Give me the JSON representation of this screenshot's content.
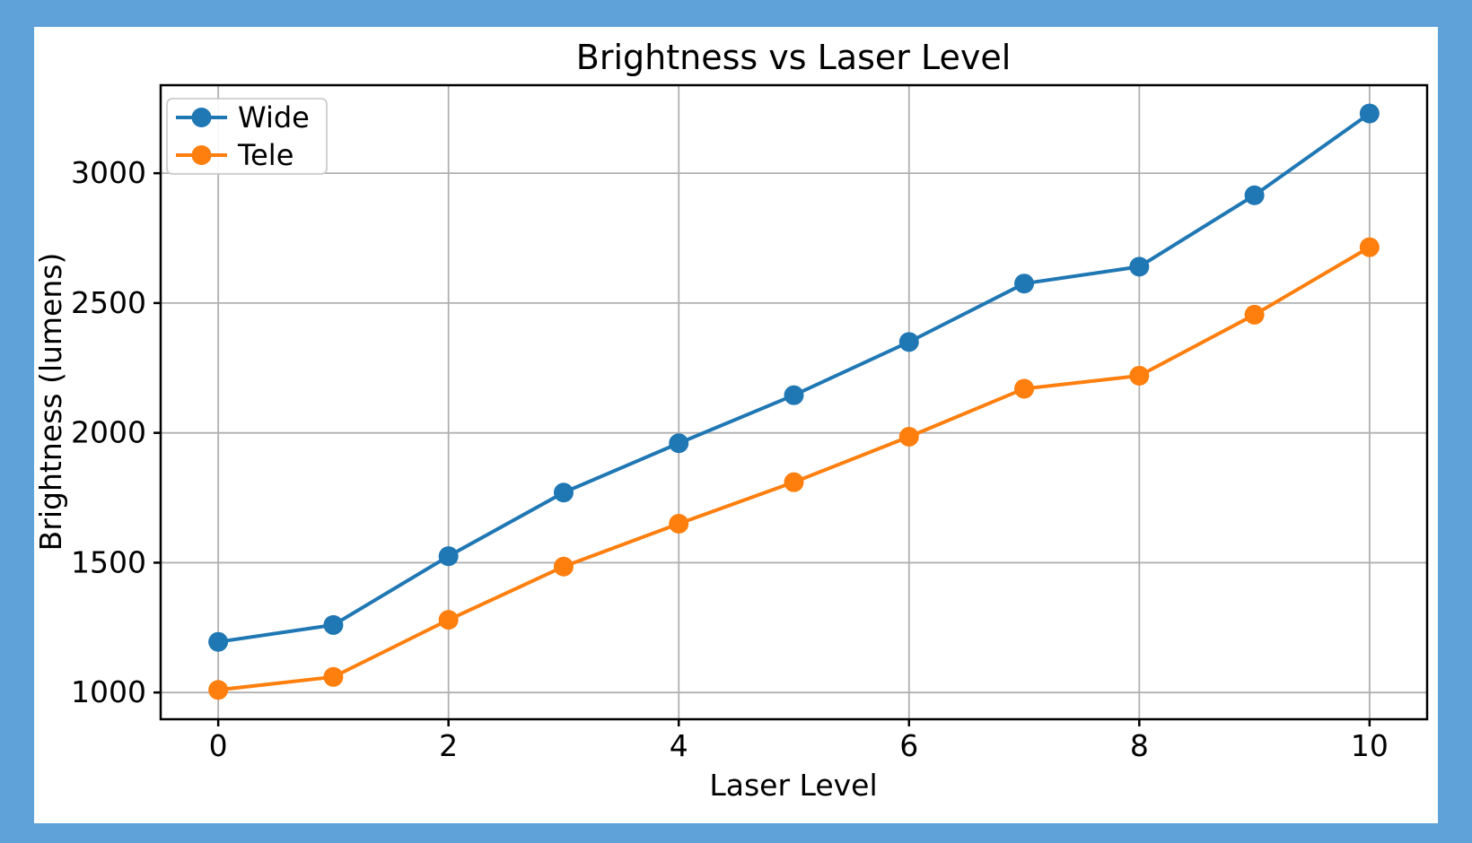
{
  "style": {
    "page_background": "#5fa2d9",
    "figure_background": "#ffffff",
    "grid_color": "#b0b0b0",
    "spine_color": "#000000",
    "legend_border_color": "#cccccc",
    "text_color": "#000000"
  },
  "chart_data": {
    "type": "line",
    "title": "Brightness vs Laser Level",
    "xlabel": "Laser Level",
    "ylabel": "Brightness (lumens)",
    "x": [
      0,
      1,
      2,
      3,
      4,
      5,
      6,
      7,
      8,
      9,
      10
    ],
    "series": [
      {
        "name": "Wide",
        "color": "#1f77b4",
        "values": [
          1195,
          1260,
          1525,
          1770,
          1960,
          2145,
          2350,
          2575,
          2640,
          2915,
          3230
        ]
      },
      {
        "name": "Tele",
        "color": "#ff7f0e",
        "values": [
          1010,
          1060,
          1280,
          1485,
          1650,
          1810,
          1985,
          2170,
          2220,
          2455,
          2715
        ]
      }
    ],
    "xticks": [
      0,
      2,
      4,
      6,
      8,
      10
    ],
    "yticks": [
      1000,
      1500,
      2000,
      2500,
      3000
    ],
    "xlim": [
      -0.5,
      10.5
    ],
    "ylim": [
      897,
      3339
    ],
    "grid": true,
    "marker": "circle",
    "legend_position": "upper-left",
    "legend_labels": [
      "Wide",
      "Tele"
    ]
  }
}
